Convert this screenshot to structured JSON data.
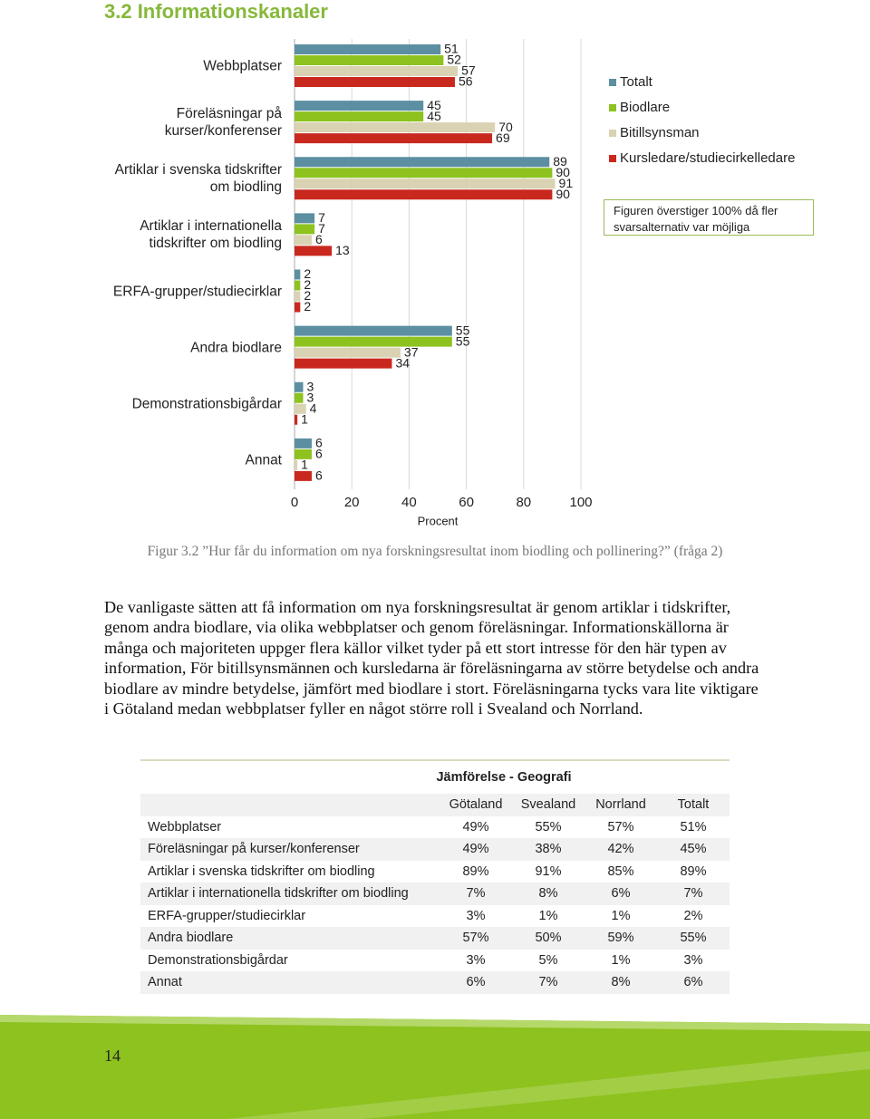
{
  "heading": "3.2 Informationskanaler",
  "chart_data": {
    "type": "bar",
    "orientation": "horizontal",
    "categories": [
      "Webbplatser",
      "Föreläsningar på kurser/konferenser",
      "Artiklar i svenska tidskrifter om biodling",
      "Artiklar i internationella tidskrifter om biodling",
      "ERFA-grupper/studiecirklar",
      "Andra biodlare",
      "Demonstrationsbigårdar",
      "Annat"
    ],
    "series": [
      {
        "name": "Totalt",
        "color": "#5b8fa1",
        "values": [
          51,
          45,
          89,
          7,
          2,
          55,
          3,
          6
        ]
      },
      {
        "name": "Biodlare",
        "color": "#8dc21f",
        "values": [
          52,
          45,
          90,
          7,
          2,
          55,
          3,
          6
        ]
      },
      {
        "name": "Bitillsynsman",
        "color": "#d9d2b3",
        "values": [
          57,
          70,
          91,
          6,
          2,
          37,
          4,
          1
        ]
      },
      {
        "name": "Kursledare/studiecirkelledare",
        "color": "#c9281f",
        "values": [
          56,
          69,
          90,
          13,
          2,
          34,
          1,
          6
        ]
      }
    ],
    "xlim": [
      0,
      100
    ],
    "xticks": [
      0,
      20,
      40,
      60,
      80,
      100
    ],
    "grid": true,
    "x_label": "Procent",
    "legend": "right",
    "note": "Figuren överstiger 100% då fler svarsalternativ var möjliga"
  },
  "caption": "Figur 3.2 ”Hur får du information om nya forskningsresultat inom biodling och pollinering?” (fråga 2)",
  "body": "De vanligaste sätten att få information om nya forskningsresultat är genom artiklar i tidskrifter, genom andra biodlare, via olika webbplatser och genom föreläsningar. Informationskällorna är många och majoriteten uppger flera källor vilket tyder på ett stort intresse för den här typen av information, För bitillsynsmännen och kursledarna är föreläsningarna av större betydelse och andra biodlare av mindre betydelse, jämfört med biodlare i stort. Föreläsningarna tycks vara lite viktigare i Götaland medan webbplatser fyller en något större roll i Svealand och Norrland.",
  "table": {
    "title": "Jämförelse - Geografi",
    "columns": [
      "Götaland",
      "Svealand",
      "Norrland",
      "Totalt"
    ],
    "rows": [
      {
        "label": "Webbplatser",
        "values": [
          "49%",
          "55%",
          "57%",
          "51%"
        ]
      },
      {
        "label": "Föreläsningar på kurser/konferenser",
        "values": [
          "49%",
          "38%",
          "42%",
          "45%"
        ]
      },
      {
        "label": "Artiklar i svenska tidskrifter om biodling",
        "values": [
          "89%",
          "91%",
          "85%",
          "89%"
        ]
      },
      {
        "label": "Artiklar i internationella tidskrifter om biodling",
        "values": [
          "7%",
          "8%",
          "6%",
          "7%"
        ]
      },
      {
        "label": "ERFA-grupper/studiecirklar",
        "values": [
          "3%",
          "1%",
          "1%",
          "2%"
        ]
      },
      {
        "label": "Andra biodlare",
        "values": [
          "57%",
          "50%",
          "59%",
          "55%"
        ]
      },
      {
        "label": "Demonstrationsbigårdar",
        "values": [
          "3%",
          "5%",
          "1%",
          "3%"
        ]
      },
      {
        "label": "Annat",
        "values": [
          "6%",
          "7%",
          "8%",
          "6%"
        ]
      }
    ]
  },
  "page_number": "14"
}
